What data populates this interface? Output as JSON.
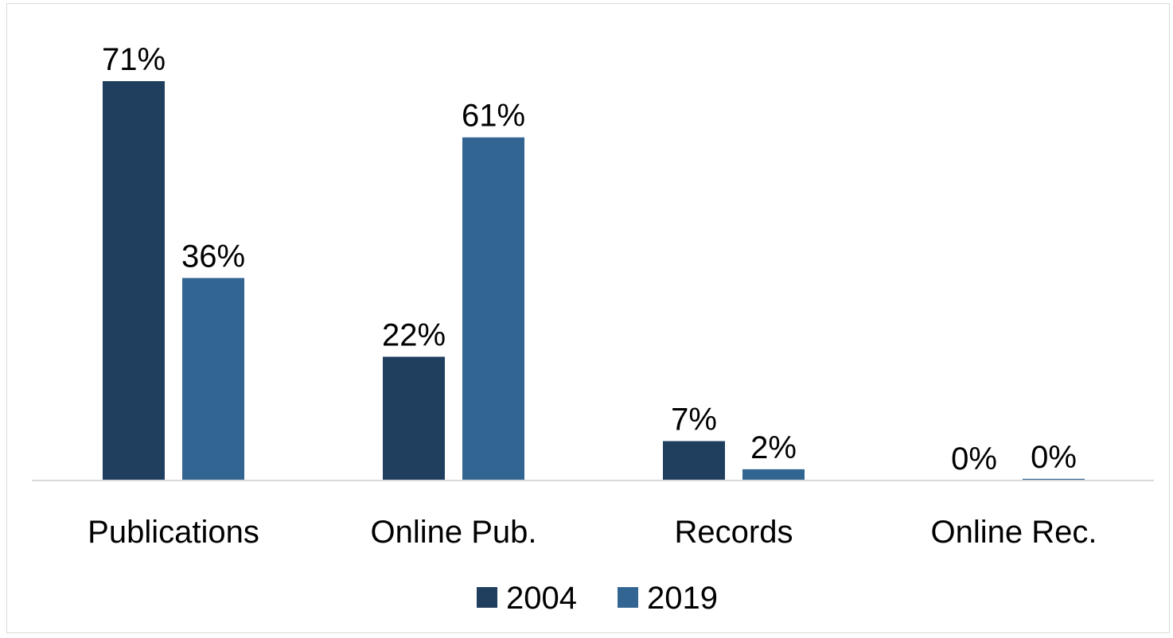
{
  "chart_data": {
    "type": "bar",
    "categories": [
      "Publications",
      "Online Pub.",
      "Records",
      "Online Rec."
    ],
    "series": [
      {
        "name": "2004",
        "values": [
          71,
          22,
          7,
          0
        ],
        "labels": [
          "71%",
          "22%",
          "7%",
          "0%"
        ],
        "color": "#203f5f"
      },
      {
        "name": "2019",
        "values": [
          36,
          61,
          2,
          0.3
        ],
        "labels": [
          "36%",
          "61%",
          "2%",
          "0%"
        ],
        "color": "#336592"
      }
    ],
    "ylim": [
      0,
      71
    ],
    "grid": false,
    "legend": "bottom"
  }
}
